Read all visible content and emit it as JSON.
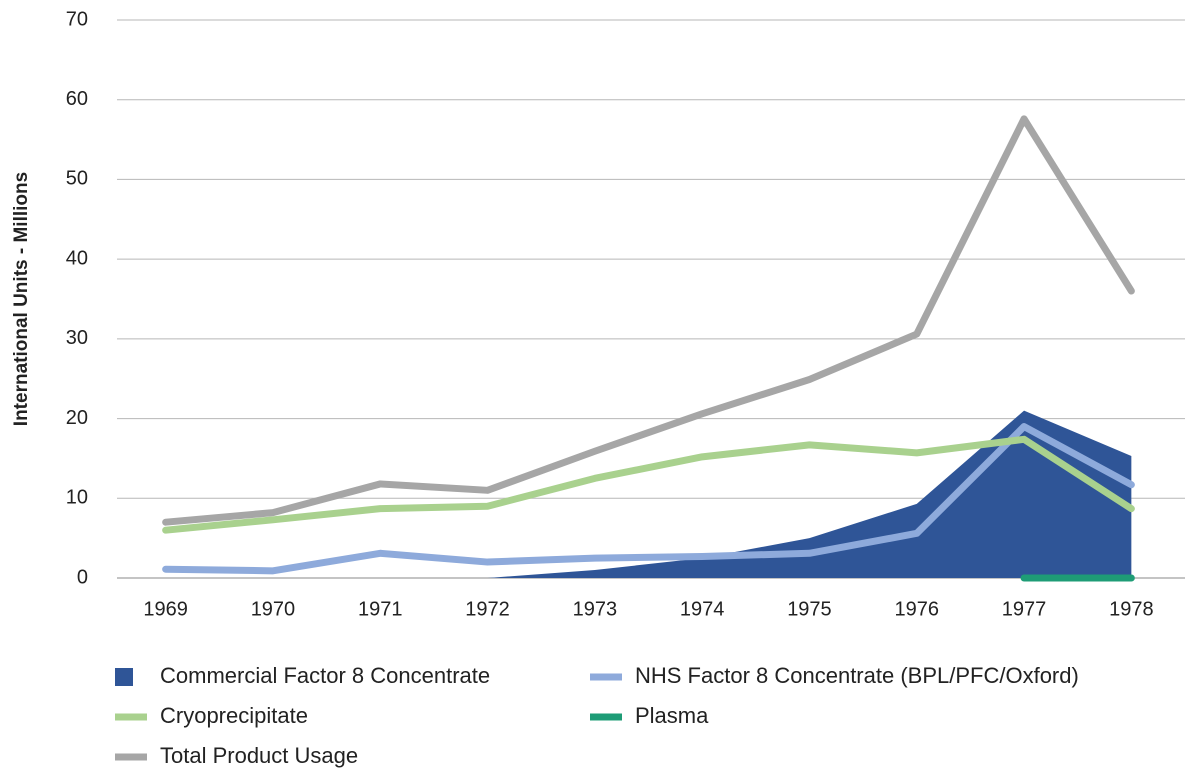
{
  "chart_data": {
    "type": "line",
    "y_label": "International Units - Millions",
    "categories": [
      "1969",
      "1970",
      "1971",
      "1972",
      "1973",
      "1974",
      "1975",
      "1976",
      "1977",
      "1978"
    ],
    "ylim": [
      0,
      70
    ],
    "yticks": [
      0,
      10,
      20,
      30,
      40,
      50,
      60,
      70
    ],
    "grid": true,
    "legend": "bottom",
    "series": [
      {
        "name": "Commercial Factor 8 Concentrate",
        "type": "area",
        "color": "#2f5597",
        "values": [
          null,
          null,
          null,
          0,
          1,
          2.5,
          5,
          9.3,
          21,
          15.3
        ]
      },
      {
        "name": "NHS Factor 8 Concentrate (BPL/PFC/Oxford)",
        "type": "line",
        "color": "#8eaadb",
        "values": [
          1.1,
          0.9,
          3.1,
          2.0,
          2.5,
          2.7,
          3.1,
          5.6,
          19,
          11.7
        ]
      },
      {
        "name": "Cryoprecipitate",
        "type": "line",
        "color": "#a9d18e",
        "values": [
          6,
          7.3,
          8.7,
          9,
          12.5,
          15.2,
          16.7,
          15.7,
          17.4,
          8.7
        ]
      },
      {
        "name": "Plasma",
        "type": "line",
        "color": "#1e9c76",
        "values": [
          null,
          null,
          null,
          null,
          null,
          null,
          null,
          null,
          0,
          0
        ]
      },
      {
        "name": "Total Product Usage",
        "type": "line",
        "color": "#a6a6a6",
        "values": [
          7,
          8.2,
          11.8,
          11,
          15.9,
          20.6,
          24.9,
          30.6,
          57.6,
          36
        ]
      }
    ]
  }
}
